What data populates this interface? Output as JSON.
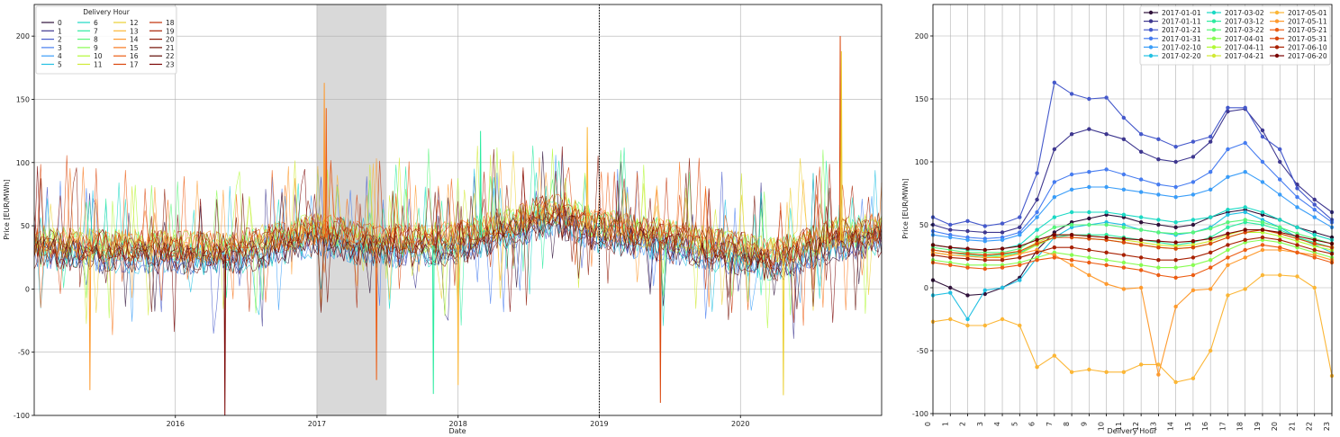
{
  "chart_data": [
    {
      "type": "line",
      "panel": "left",
      "xlabel": "Date",
      "ylabel": "Price [EUR/MWh]",
      "xlim": [
        "2015-01-01",
        "2020-12-31"
      ],
      "ylim": [
        -100,
        225
      ],
      "yticks": [
        -100,
        -50,
        0,
        50,
        100,
        150,
        200
      ],
      "xticks": [
        {
          "date": "2016-01-01",
          "label": "2016"
        },
        {
          "date": "2017-01-01",
          "label": "2017"
        },
        {
          "date": "2018-01-01",
          "label": "2018"
        },
        {
          "date": "2019-01-01",
          "label": "2019"
        },
        {
          "date": "2020-01-01",
          "label": "2020"
        }
      ],
      "grid": true,
      "shaded_region": {
        "start": "2017-01-01",
        "end": "2017-06-30",
        "color": "#d9d9d9"
      },
      "vline": {
        "date": "2019-01-01",
        "style": "dotted",
        "color": "#000000"
      },
      "legend": {
        "title": "Delivery Hour",
        "position": "top-left",
        "entries": [
          "0",
          "1",
          "2",
          "3",
          "4",
          "5",
          "6",
          "7",
          "8",
          "9",
          "10",
          "11",
          "12",
          "13",
          "14",
          "15",
          "16",
          "17",
          "18",
          "19",
          "20",
          "21",
          "22",
          "23"
        ]
      },
      "series_colors": [
        "#30123b",
        "#3e378f",
        "#4559cb",
        "#467cf0",
        "#3a9df8",
        "#22c0e2",
        "#1ad9c4",
        "#2ceba0",
        "#57f57a",
        "#87fc51",
        "#b2f936",
        "#d1e934",
        "#ebd033",
        "#fbb636",
        "#fe9a2e",
        "#f8781e",
        "#ec5c12",
        "#da450a",
        "#c23005",
        "#a82103",
        "#8c1602",
        "#730d01",
        "#5f0801",
        "#7a0403"
      ],
      "summary": {
        "baseline_by_year": [
          {
            "date": "2015-01-01",
            "value": 32
          },
          {
            "date": "2015-06-01",
            "value": 29
          },
          {
            "date": "2016-01-01",
            "value": 28
          },
          {
            "date": "2016-06-01",
            "value": 27
          },
          {
            "date": "2017-01-01",
            "value": 42
          },
          {
            "date": "2017-06-01",
            "value": 33
          },
          {
            "date": "2018-01-01",
            "value": 35
          },
          {
            "date": "2018-09-01",
            "value": 58
          },
          {
            "date": "2019-01-01",
            "value": 45
          },
          {
            "date": "2019-06-01",
            "value": 38
          },
          {
            "date": "2020-04-01",
            "value": 22
          },
          {
            "date": "2020-09-01",
            "value": 38
          },
          {
            "date": "2020-12-31",
            "value": 42
          }
        ],
        "notable_peaks": [
          {
            "date": "2017-01-20",
            "value": 163
          },
          {
            "date": "2017-01-25",
            "value": 143
          },
          {
            "date": "2018-02-28",
            "value": 125
          },
          {
            "date": "2018-12-01",
            "value": 128
          },
          {
            "date": "2020-09-15",
            "value": 200
          },
          {
            "date": "2020-09-18",
            "value": 188
          }
        ],
        "notable_dips": [
          {
            "date": "2016-05-08",
            "value": -100
          },
          {
            "date": "2015-05-25",
            "value": -80
          },
          {
            "date": "2017-06-04",
            "value": -72
          },
          {
            "date": "2017-10-29",
            "value": -83
          },
          {
            "date": "2018-01-01",
            "value": -76
          },
          {
            "date": "2019-06-08",
            "value": -90
          },
          {
            "date": "2020-04-21",
            "value": -84
          }
        ]
      }
    },
    {
      "type": "line",
      "panel": "right",
      "xlabel": "Delivery Hour",
      "ylabel": "Price [EUR/MWh]",
      "xlim": [
        0,
        23
      ],
      "ylim": [
        -100,
        225
      ],
      "yticks": [
        -100,
        -50,
        0,
        50,
        100,
        150,
        200
      ],
      "x": [
        0,
        1,
        2,
        3,
        4,
        5,
        6,
        7,
        8,
        9,
        10,
        11,
        12,
        13,
        14,
        15,
        16,
        17,
        18,
        19,
        20,
        21,
        22,
        23
      ],
      "grid": true,
      "legend": {
        "position": "top-right",
        "columns": 3
      },
      "series": [
        {
          "name": "2017-01-01",
          "color": "#30123b",
          "values": [
            6,
            0,
            -6,
            -5,
            0,
            8,
            30,
            44,
            52,
            55,
            58,
            56,
            52,
            50,
            48,
            50,
            56,
            60,
            62,
            58,
            54,
            48,
            44,
            40
          ]
        },
        {
          "name": "2017-01-11",
          "color": "#3e378f",
          "values": [
            50,
            46,
            45,
            44,
            44,
            48,
            70,
            110,
            122,
            126,
            122,
            118,
            108,
            102,
            100,
            104,
            116,
            140,
            142,
            125,
            100,
            82,
            70,
            60
          ]
        },
        {
          "name": "2017-01-21",
          "color": "#4559cb",
          "values": [
            56,
            50,
            53,
            49,
            51,
            56,
            91,
            163,
            154,
            150,
            151,
            135,
            122,
            118,
            112,
            116,
            120,
            143,
            143,
            120,
            110,
            79,
            66,
            54
          ]
        },
        {
          "name": "2017-01-31",
          "color": "#467cf0",
          "values": [
            45,
            42,
            40,
            39,
            40,
            44,
            60,
            84,
            90,
            92,
            94,
            90,
            86,
            82,
            80,
            84,
            92,
            110,
            115,
            100,
            86,
            72,
            62,
            52
          ]
        },
        {
          "name": "2017-02-10",
          "color": "#3a9df8",
          "values": [
            42,
            40,
            38,
            37,
            38,
            42,
            56,
            72,
            78,
            80,
            80,
            78,
            76,
            74,
            72,
            74,
            78,
            88,
            92,
            84,
            74,
            64,
            56,
            48
          ]
        },
        {
          "name": "2017-02-20",
          "color": "#22c0e2",
          "values": [
            -6,
            -4,
            -25,
            -2,
            0,
            6,
            24,
            40,
            48,
            50,
            52,
            50,
            46,
            44,
            42,
            44,
            48,
            58,
            60,
            54,
            48,
            40,
            34,
            28
          ]
        },
        {
          "name": "2017-03-02",
          "color": "#1ad9c4",
          "values": [
            34,
            32,
            30,
            30,
            31,
            34,
            46,
            56,
            60,
            60,
            60,
            58,
            56,
            54,
            52,
            54,
            56,
            62,
            64,
            60,
            54,
            48,
            42,
            38
          ]
        },
        {
          "name": "2017-03-12",
          "color": "#2ceba0",
          "values": [
            30,
            28,
            26,
            25,
            26,
            28,
            34,
            40,
            42,
            42,
            42,
            40,
            38,
            36,
            34,
            36,
            40,
            48,
            52,
            50,
            46,
            40,
            36,
            32
          ]
        },
        {
          "name": "2017-03-22",
          "color": "#57f57a",
          "values": [
            32,
            30,
            28,
            28,
            28,
            31,
            40,
            48,
            50,
            50,
            50,
            48,
            46,
            44,
            43,
            44,
            47,
            52,
            54,
            52,
            48,
            43,
            39,
            35
          ]
        },
        {
          "name": "2017-04-01",
          "color": "#87fc51",
          "values": [
            22,
            20,
            18,
            18,
            18,
            20,
            24,
            28,
            26,
            24,
            22,
            20,
            18,
            16,
            16,
            18,
            22,
            30,
            36,
            38,
            36,
            32,
            28,
            24
          ]
        },
        {
          "name": "2017-04-11",
          "color": "#b2f936",
          "values": [
            28,
            26,
            25,
            24,
            25,
            27,
            34,
            40,
            40,
            39,
            38,
            36,
            34,
            32,
            31,
            32,
            35,
            40,
            44,
            44,
            41,
            37,
            33,
            30
          ]
        },
        {
          "name": "2017-04-21",
          "color": "#d1e934",
          "values": [
            30,
            28,
            27,
            26,
            27,
            29,
            36,
            42,
            42,
            41,
            40,
            38,
            36,
            34,
            33,
            34,
            37,
            42,
            46,
            46,
            43,
            39,
            35,
            32
          ]
        },
        {
          "name": "2017-05-01",
          "color": "#fbb636",
          "values": [
            -27,
            -25,
            -30,
            -30,
            -25,
            -30,
            -63,
            -54,
            -67,
            -65,
            -67,
            -67,
            -61,
            -61,
            -75,
            -72,
            -50,
            -6,
            -1,
            10,
            10,
            9,
            0,
            -70
          ]
        },
        {
          "name": "2017-05-11",
          "color": "#fe9a2e",
          "values": [
            28,
            26,
            25,
            24,
            24,
            27,
            30,
            26,
            18,
            10,
            3,
            -1,
            0,
            -69,
            -15,
            -2,
            -1,
            18,
            24,
            30,
            30,
            28,
            26,
            22
          ]
        },
        {
          "name": "2017-05-21",
          "color": "#ec5c12",
          "values": [
            20,
            18,
            16,
            15,
            16,
            18,
            22,
            24,
            22,
            20,
            18,
            16,
            14,
            10,
            8,
            10,
            16,
            24,
            30,
            34,
            32,
            28,
            24,
            20
          ]
        },
        {
          "name": "2017-05-31",
          "color": "#da450a",
          "values": [
            30,
            28,
            27,
            26,
            27,
            29,
            35,
            40,
            40,
            39,
            38,
            36,
            34,
            32,
            31,
            32,
            35,
            40,
            44,
            46,
            43,
            39,
            35,
            32
          ]
        },
        {
          "name": "2017-06-10",
          "color": "#a82103",
          "values": [
            26,
            24,
            23,
            22,
            22,
            24,
            28,
            32,
            32,
            30,
            28,
            26,
            24,
            22,
            22,
            24,
            28,
            34,
            38,
            40,
            38,
            34,
            30,
            27
          ]
        },
        {
          "name": "2017-06-20",
          "color": "#7a0403",
          "values": [
            34,
            32,
            31,
            30,
            31,
            33,
            38,
            42,
            42,
            41,
            40,
            39,
            38,
            37,
            36,
            37,
            39,
            43,
            46,
            46,
            44,
            41,
            38,
            35
          ]
        }
      ]
    }
  ]
}
